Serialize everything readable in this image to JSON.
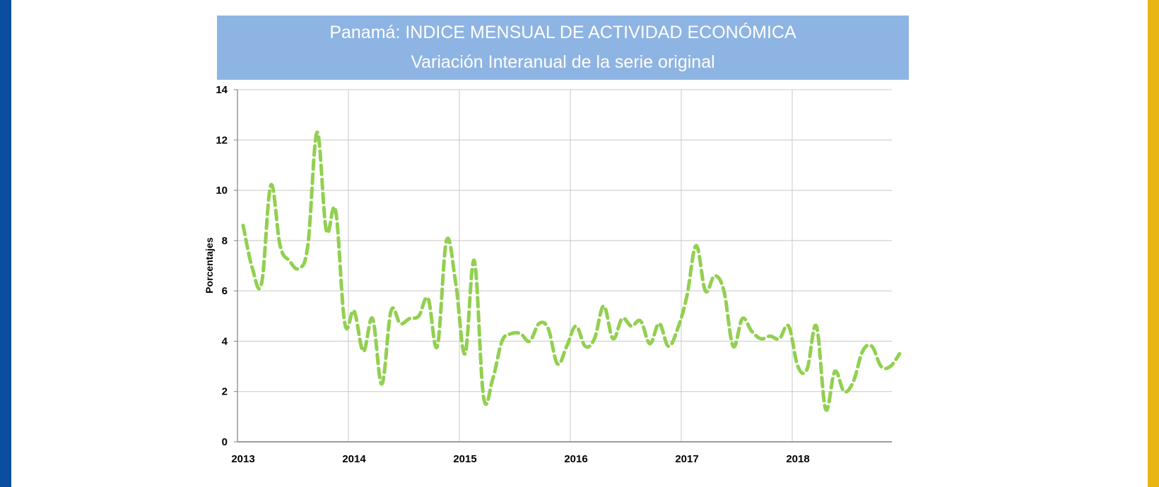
{
  "colors": {
    "left_band": "#0a4ea0",
    "right_band": "#e8b514",
    "header_bg": "#8eb4e3",
    "line": "#92d050",
    "grid": "#c8c8c8",
    "axis": "#7f7f7f"
  },
  "chart_data": {
    "type": "line",
    "title": "Panamá: INDICE MENSUAL DE ACTIVIDAD ECONÓMICA",
    "subtitle": "Variación Interanual de la serie original",
    "xlabel": "",
    "ylabel": "Porcentajes",
    "ylim": [
      0,
      14
    ],
    "yticks": [
      "0",
      "2",
      "4",
      "6",
      "8",
      "10",
      "12",
      "14"
    ],
    "xticks": [
      "2013",
      "2014",
      "2015",
      "2016",
      "2017",
      "2018"
    ],
    "grid": true,
    "line_style": "dashed",
    "series": [
      {
        "x": [
          "2013-01",
          "2013-02",
          "2013-03",
          "2013-04",
          "2013-05",
          "2013-06",
          "2013-07",
          "2013-08",
          "2013-09",
          "2013-10",
          "2013-11",
          "2013-12",
          "2014-01",
          "2014-02",
          "2014-03",
          "2014-04",
          "2014-05",
          "2014-06",
          "2014-07",
          "2014-08",
          "2014-09",
          "2014-10",
          "2014-11",
          "2014-12",
          "2015-01",
          "2015-02",
          "2015-03",
          "2015-04",
          "2015-05",
          "2015-06",
          "2015-07",
          "2015-08",
          "2015-09",
          "2015-10",
          "2015-11",
          "2015-12",
          "2016-01",
          "2016-02",
          "2016-03",
          "2016-04",
          "2016-05",
          "2016-06",
          "2016-07",
          "2016-08",
          "2016-09",
          "2016-10",
          "2016-11",
          "2016-12",
          "2017-01",
          "2017-02",
          "2017-03",
          "2017-04",
          "2017-05",
          "2017-06",
          "2017-07",
          "2017-08",
          "2017-09",
          "2017-10",
          "2017-11",
          "2017-12",
          "2018-01",
          "2018-02",
          "2018-03",
          "2018-04",
          "2018-05",
          "2018-06",
          "2018-07",
          "2018-08",
          "2018-09",
          "2018-10",
          "2018-11",
          "2018-12"
        ],
        "values": [
          8.6,
          6.9,
          6.3,
          10.2,
          7.8,
          7.2,
          6.9,
          7.8,
          12.3,
          8.4,
          9.2,
          4.7,
          5.2,
          3.6,
          4.9,
          2.3,
          5.2,
          4.7,
          4.9,
          5.0,
          5.7,
          3.8,
          8.0,
          6.3,
          3.5,
          7.2,
          1.8,
          2.5,
          4.0,
          4.3,
          4.3,
          4.0,
          4.7,
          4.5,
          3.1,
          3.8,
          4.6,
          3.8,
          4.1,
          5.4,
          4.1,
          4.9,
          4.6,
          4.8,
          3.9,
          4.7,
          3.8,
          4.5,
          5.8,
          7.8,
          6.0,
          6.6,
          6.0,
          3.8,
          4.9,
          4.4,
          4.1,
          4.2,
          4.1,
          4.6,
          3.0,
          2.9,
          4.6,
          1.3,
          2.8,
          2.0,
          2.4,
          3.6,
          3.8,
          3.0,
          3.0,
          3.5
        ]
      }
    ]
  }
}
